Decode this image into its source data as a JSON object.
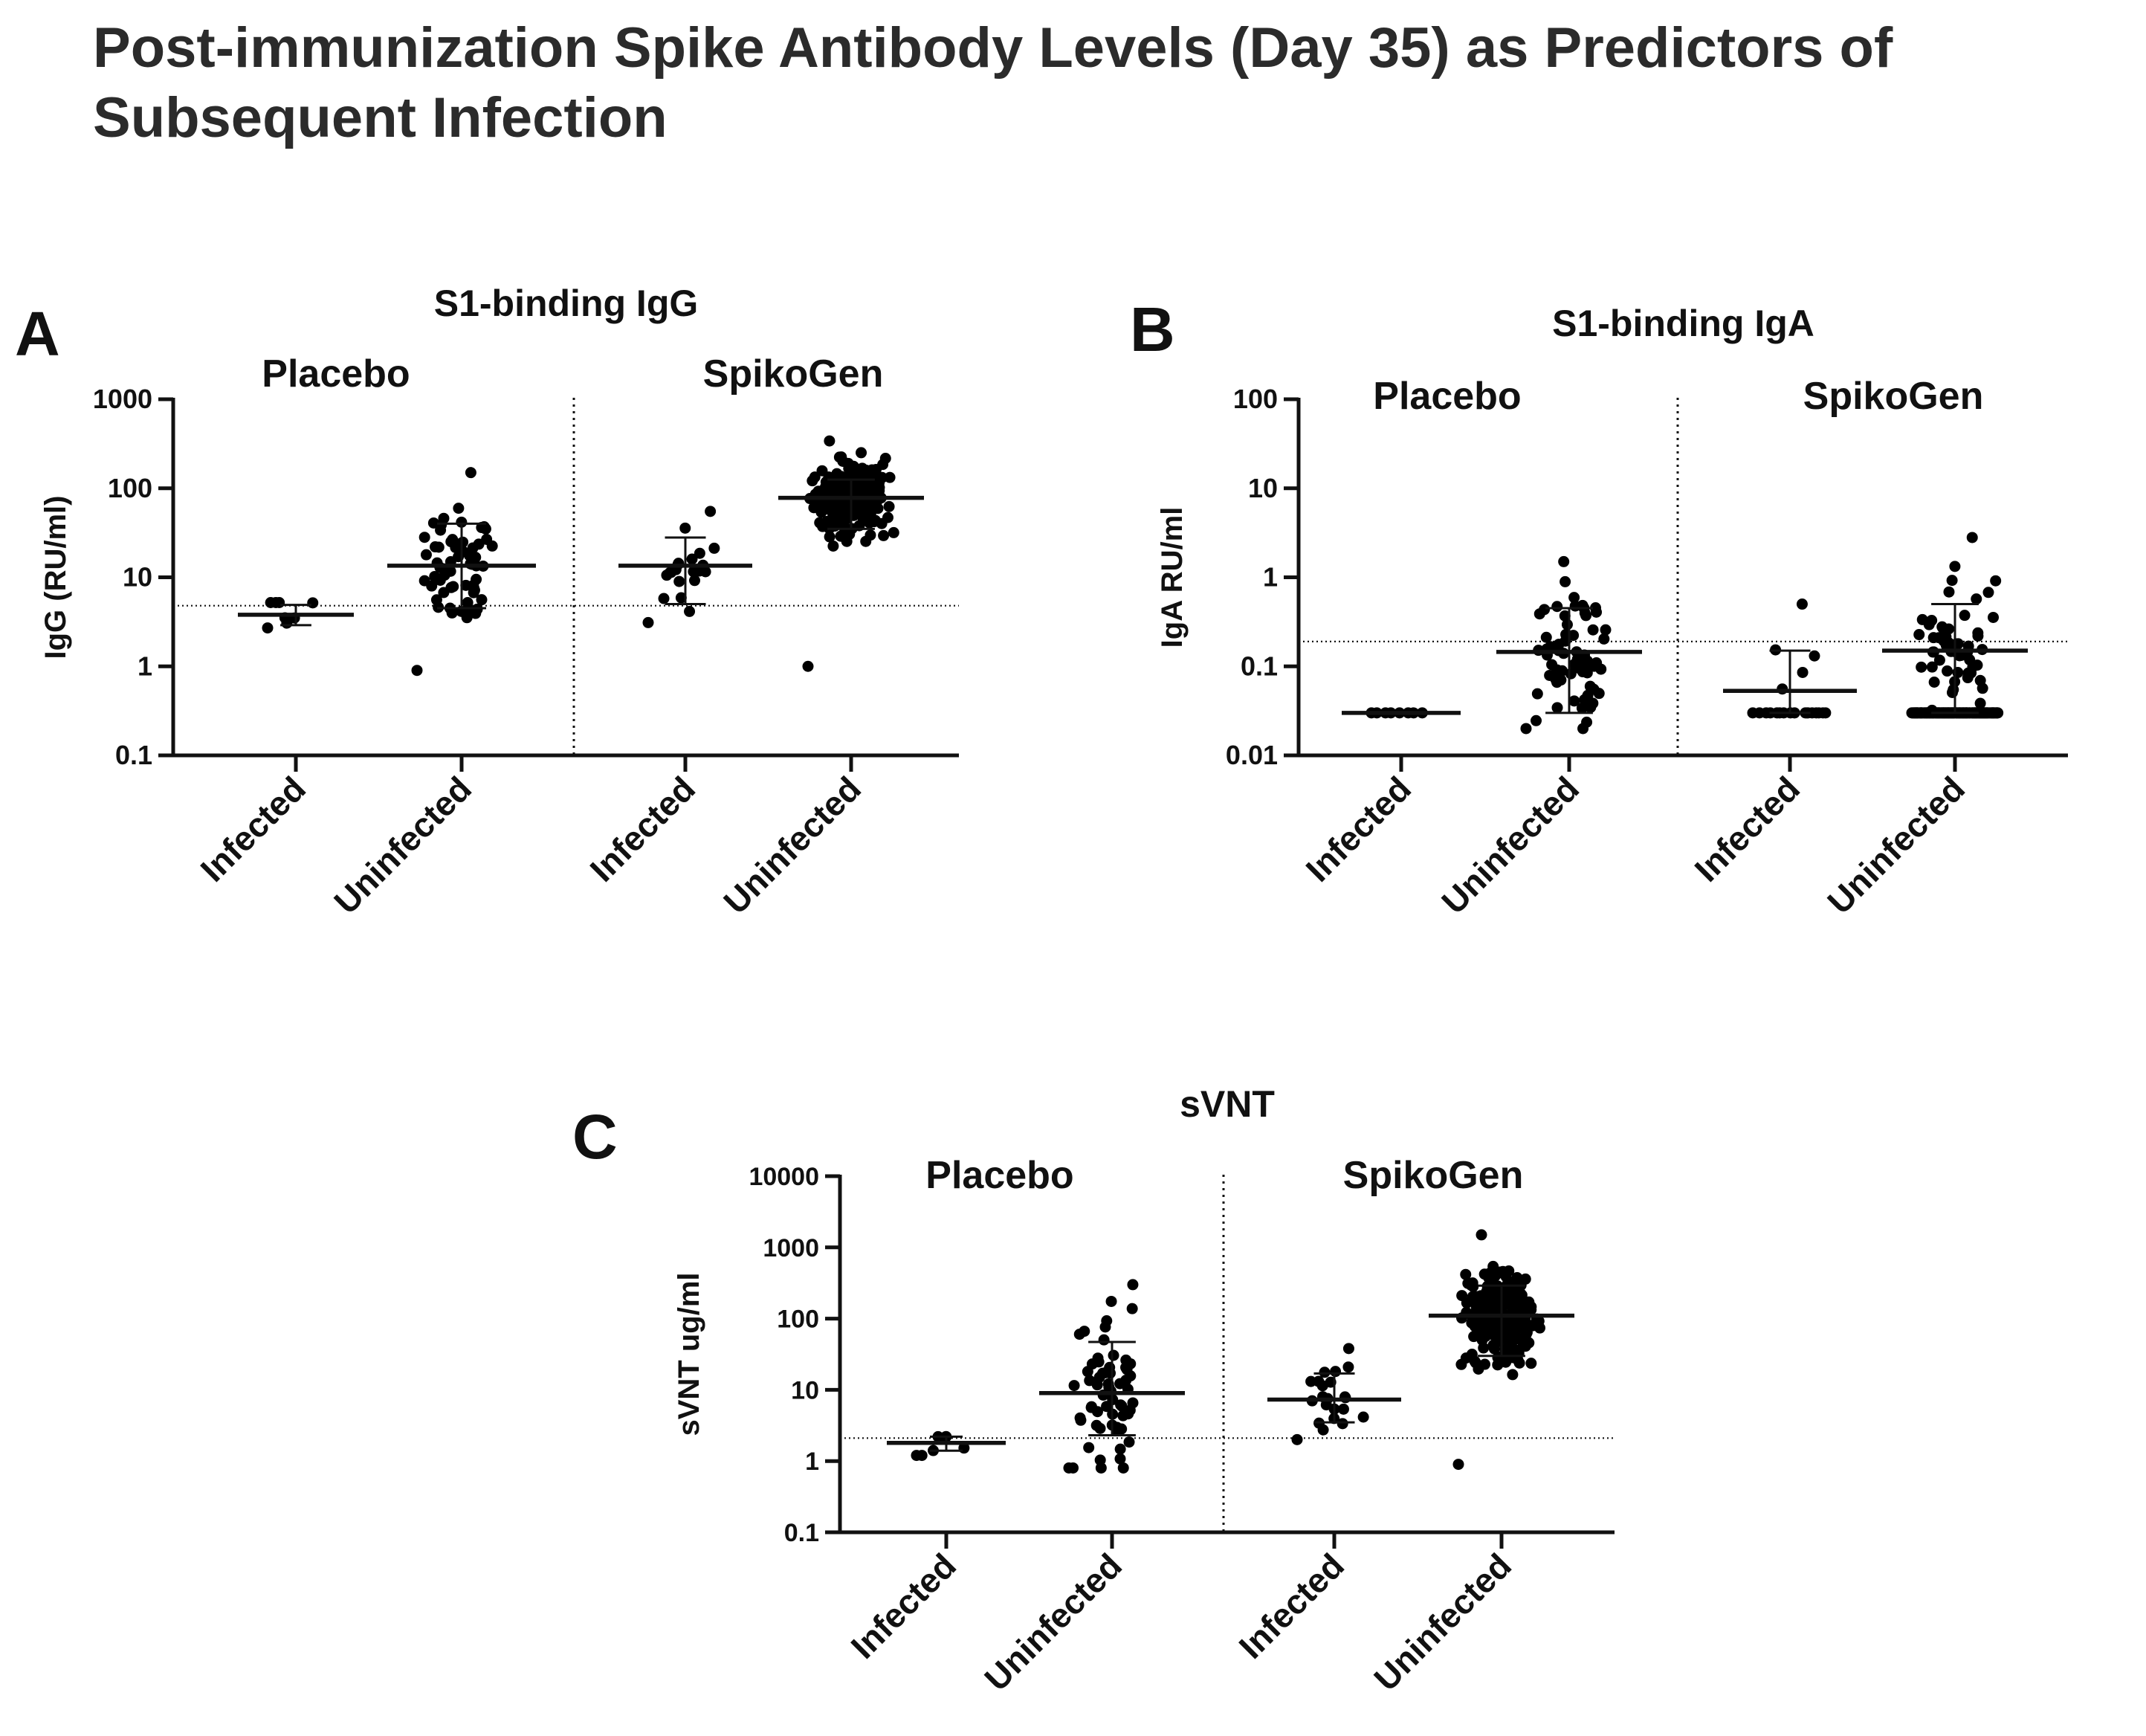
{
  "page": {
    "title": "Post-immunization Spike Antibody Levels (Day 35) as Predictors of Subsequent Infection"
  },
  "colors": {
    "ink": "#111111",
    "dot": "#000000"
  },
  "chart_data": [
    {
      "id": "A",
      "panel_letter": "A",
      "type": "scatter",
      "title": "S1-binding IgG",
      "ylabel": "IgG (RU/ml)",
      "yscale": "log",
      "ylim": [
        0.1,
        1000
      ],
      "yticks": [
        0.1,
        1,
        10,
        100,
        1000
      ],
      "ytick_labels": [
        "0.1",
        "1",
        "10",
        "100",
        "1000"
      ],
      "groups": [
        "Placebo",
        "SpikoGen"
      ],
      "categories": [
        "Infected",
        "Uninfected",
        "Infected",
        "Uninfected"
      ],
      "threshold": 4.8,
      "series": [
        {
          "group": "Placebo",
          "name": "Infected",
          "n": 8,
          "min": 2.7,
          "max": 5.2,
          "mean": 3.8,
          "sd_low": 2.9,
          "sd_high": 4.9
        },
        {
          "group": "Placebo",
          "name": "Uninfected",
          "n": 64,
          "min": 0.9,
          "max": 150,
          "mean": 13.5,
          "sd_low": 4.5,
          "sd_high": 40
        },
        {
          "group": "SpikoGen",
          "name": "Infected",
          "n": 22,
          "min": 3.1,
          "max": 55,
          "mean": 13.5,
          "sd_low": 5,
          "sd_high": 28
        },
        {
          "group": "SpikoGen",
          "name": "Uninfected",
          "n": 230,
          "min": 1.0,
          "max": 340,
          "mean": 78,
          "sd_low": 35,
          "sd_high": 125
        }
      ]
    },
    {
      "id": "B",
      "panel_letter": "B",
      "type": "scatter",
      "title": "S1-binding IgA",
      "ylabel": "IgA RU/ml",
      "yscale": "log",
      "ylim": [
        0.01,
        100
      ],
      "yticks": [
        0.01,
        0.1,
        1,
        10,
        100
      ],
      "ytick_labels": [
        "0.01",
        "0.1",
        "1",
        "10",
        "100"
      ],
      "groups": [
        "Placebo",
        "SpikoGen"
      ],
      "categories": [
        "Infected",
        "Uninfected",
        "Infected",
        "Uninfected"
      ],
      "threshold": 0.19,
      "series": [
        {
          "group": "Placebo",
          "name": "Infected",
          "n": 8,
          "min": 0.03,
          "max": 0.03,
          "mean": 0.03,
          "sd_low": 0.03,
          "sd_high": 0.03
        },
        {
          "group": "Placebo",
          "name": "Uninfected",
          "n": 70,
          "min": 0.02,
          "max": 1.5,
          "mean": 0.145,
          "sd_low": 0.03,
          "sd_high": 0.45
        },
        {
          "group": "SpikoGen",
          "name": "Infected",
          "n": 22,
          "min": 0.03,
          "max": 0.5,
          "mean": 0.053,
          "sd_low": 0.03,
          "sd_high": 0.15
        },
        {
          "group": "SpikoGen",
          "name": "Uninfected",
          "n": 230,
          "min": 0.03,
          "max": 2.8,
          "mean": 0.15,
          "sd_low": 0.03,
          "sd_high": 0.5
        }
      ]
    },
    {
      "id": "C",
      "panel_letter": "C",
      "type": "scatter",
      "title": "sVNT",
      "ylabel": "sVNT ug/ml",
      "yscale": "log",
      "ylim": [
        0.1,
        10000
      ],
      "yticks": [
        0.1,
        1,
        10,
        100,
        1000,
        10000
      ],
      "ytick_labels": [
        "0.1",
        "1",
        "10",
        "100",
        "1000",
        "10000"
      ],
      "groups": [
        "Placebo",
        "SpikoGen"
      ],
      "categories": [
        "Infected",
        "Uninfected",
        "Infected",
        "Uninfected"
      ],
      "threshold": 2.1,
      "series": [
        {
          "group": "Placebo",
          "name": "Infected",
          "n": 8,
          "min": 1.2,
          "max": 2.2,
          "mean": 1.8,
          "sd_low": 1.4,
          "sd_high": 2.2
        },
        {
          "group": "Placebo",
          "name": "Uninfected",
          "n": 64,
          "min": 0.8,
          "max": 300,
          "mean": 9,
          "sd_low": 2.3,
          "sd_high": 47
        },
        {
          "group": "SpikoGen",
          "name": "Infected",
          "n": 22,
          "min": 2.0,
          "max": 38,
          "mean": 7.3,
          "sd_low": 3.5,
          "sd_high": 17
        },
        {
          "group": "SpikoGen",
          "name": "Uninfected",
          "n": 230,
          "min": 0.9,
          "max": 1500,
          "mean": 110,
          "sd_low": 30,
          "sd_high": 290
        }
      ]
    }
  ]
}
